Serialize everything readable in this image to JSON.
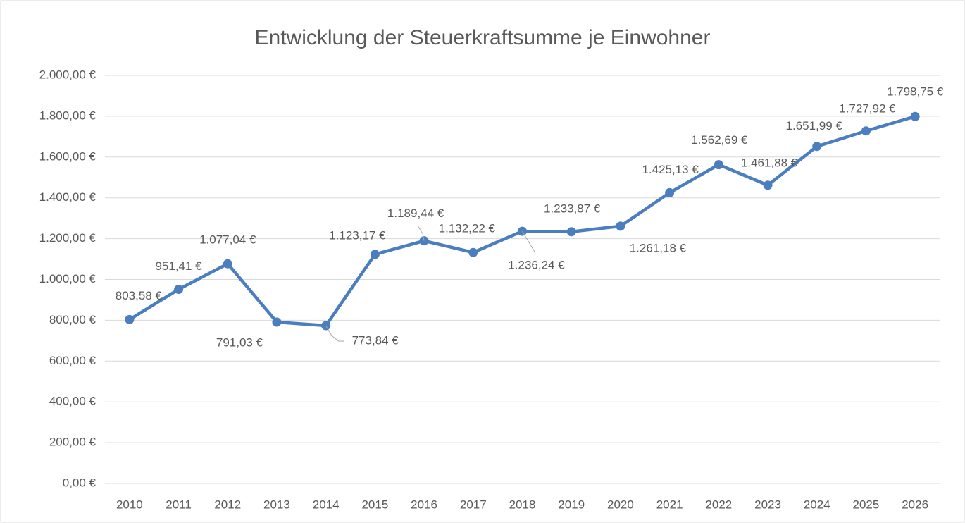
{
  "chart_data": {
    "type": "line",
    "title": "Entwicklung der Steuerkraftsumme je Einwohner",
    "categories": [
      "2010",
      "2011",
      "2012",
      "2013",
      "2014",
      "2015",
      "2016",
      "2017",
      "2018",
      "2019",
      "2020",
      "2021",
      "2022",
      "2023",
      "2024",
      "2025",
      "2026"
    ],
    "series": [
      {
        "name": "Steuerkraftsumme je Einwohner",
        "color": "#4a7ebf",
        "values": [
          803.58,
          951.41,
          1077.04,
          791.03,
          773.84,
          1123.17,
          1189.44,
          1132.22,
          1236.24,
          1233.87,
          1261.18,
          1425.13,
          1562.69,
          1461.88,
          1651.99,
          1727.92,
          1798.75
        ],
        "value_labels": [
          "803,58 €",
          "951,41 €",
          "1.077,04 €",
          "791,03 €",
          "773,84 €",
          "1.123,17 €",
          "1.189,44 €",
          "1.132,22 €",
          "1.236,24 €",
          "1.233,87 €",
          "1.261,18 €",
          "1.425,13 €",
          "1.562,69 €",
          "1.461,88 €",
          "1.651,99 €",
          "1.727,92 €",
          "1.798,75 €"
        ]
      }
    ],
    "ylim": [
      0,
      2000
    ],
    "yticks": [
      {
        "value": 0,
        "label": "0,00 €"
      },
      {
        "value": 200,
        "label": "200,00 €"
      },
      {
        "value": 400,
        "label": "400,00 €"
      },
      {
        "value": 600,
        "label": "600,00 €"
      },
      {
        "value": 800,
        "label": "800,00 €"
      },
      {
        "value": 1000,
        "label": "1.000,00 €"
      },
      {
        "value": 1200,
        "label": "1.200,00 €"
      },
      {
        "value": 1400,
        "label": "1.400,00 €"
      },
      {
        "value": 1600,
        "label": "1.600,00 €"
      },
      {
        "value": 1800,
        "label": "1.800,00 €"
      },
      {
        "value": 2000,
        "label": "2.000,00 €"
      }
    ],
    "grid": true
  }
}
